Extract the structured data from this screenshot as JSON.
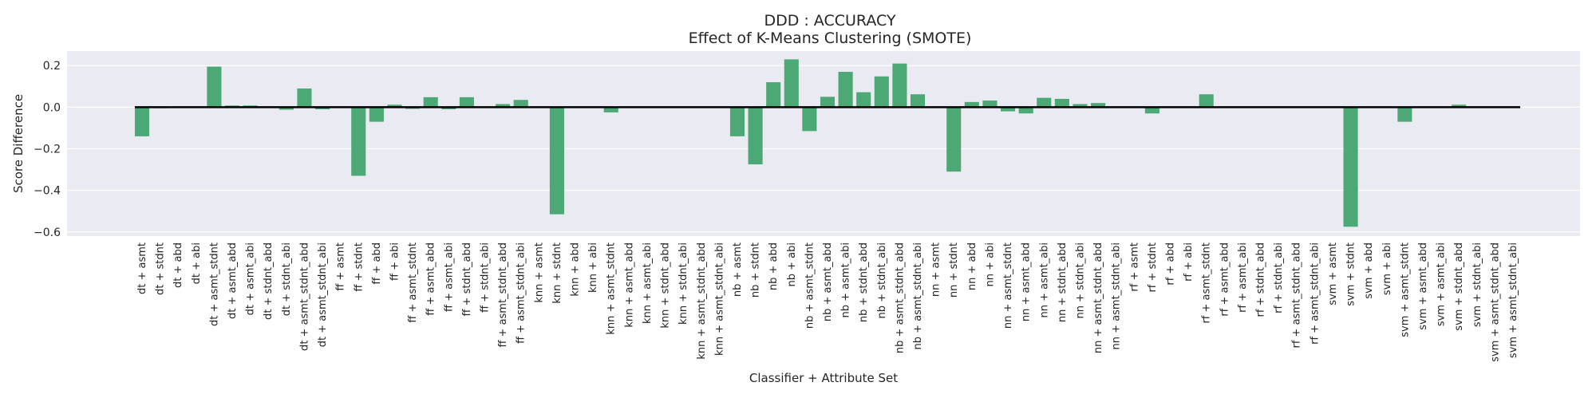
{
  "chart_data": {
    "type": "bar",
    "title": "DDD : ACCURACY",
    "subtitle": "Effect of K-Means Clustering (SMOTE)",
    "xlabel": "Classifier + Attribute Set",
    "ylabel": "Score Difference",
    "ylim": [
      -0.62,
      0.27
    ],
    "yticks": [
      0.2,
      0.0,
      -0.2,
      -0.4,
      -0.6
    ],
    "ytick_labels": [
      "0.2",
      "0.0",
      "−0.2",
      "−0.4",
      "−0.6"
    ],
    "grid": true,
    "reference_line": 0.0,
    "bar_color": "#4ca874",
    "background_color": "#eaeaf2",
    "categories": [
      "dt + asmt",
      "dt + stdnt",
      "dt + abd",
      "dt + abi",
      "dt + asmt_stdnt",
      "dt + asmt_abd",
      "dt + asmt_abi",
      "dt + stdnt_abd",
      "dt + stdnt_abi",
      "dt + asmt_stdnt_abd",
      "dt + asmt_stdnt_abi",
      "ff + asmt",
      "ff + stdnt",
      "ff + abd",
      "ff + abi",
      "ff + asmt_stdnt",
      "ff + asmt_abd",
      "ff + asmt_abi",
      "ff + stdnt_abd",
      "ff + stdnt_abi",
      "ff + asmt_stdnt_abd",
      "ff + asmt_stdnt_abi",
      "knn + asmt",
      "knn + stdnt",
      "knn + abd",
      "knn + abi",
      "knn + asmt_stdnt",
      "knn + asmt_abd",
      "knn + asmt_abi",
      "knn + stdnt_abd",
      "knn + stdnt_abi",
      "knn + asmt_stdnt_abd",
      "knn + asmt_stdnt_abi",
      "nb + asmt",
      "nb + stdnt",
      "nb + abd",
      "nb + abi",
      "nb + asmt_stdnt",
      "nb + asmt_abd",
      "nb + asmt_abi",
      "nb + stdnt_abd",
      "nb + stdnt_abi",
      "nb + asmt_stdnt_abd",
      "nb + asmt_stdnt_abi",
      "nn + asmt",
      "nn + stdnt",
      "nn + abd",
      "nn + abi",
      "nn + asmt_stdnt",
      "nn + asmt_abd",
      "nn + asmt_abi",
      "nn + stdnt_abd",
      "nn + stdnt_abi",
      "nn + asmt_stdnt_abd",
      "nn + asmt_stdnt_abi",
      "rf + asmt",
      "rf + stdnt",
      "rf + abd",
      "rf + abi",
      "rf + asmt_stdnt",
      "rf + asmt_abd",
      "rf + asmt_abi",
      "rf + stdnt_abd",
      "rf + stdnt_abi",
      "rf + asmt_stdnt_abd",
      "rf + asmt_stdnt_abi",
      "svm + asmt",
      "svm + stdnt",
      "svm + abd",
      "svm + abi",
      "svm + asmt_stdnt",
      "svm + asmt_abd",
      "svm + asmt_abi",
      "svm + stdnt_abd",
      "svm + stdnt_abi",
      "svm + asmt_stdnt_abd",
      "svm + asmt_stdnt_abi"
    ],
    "values": [
      -0.14,
      -0.005,
      0.0,
      0.0,
      0.195,
      0.008,
      0.008,
      0.0,
      -0.012,
      0.09,
      -0.01,
      0.0,
      -0.33,
      -0.07,
      0.012,
      -0.008,
      0.048,
      -0.01,
      0.048,
      0.0,
      0.015,
      0.035,
      0.0,
      -0.515,
      0.0,
      0.0,
      -0.025,
      0.0,
      0.0,
      0.0,
      0.0,
      0.0,
      0.0,
      -0.14,
      -0.275,
      0.12,
      0.23,
      -0.115,
      0.05,
      0.17,
      0.072,
      0.148,
      0.21,
      0.062,
      0.0,
      -0.31,
      0.025,
      0.032,
      -0.02,
      -0.03,
      0.045,
      0.04,
      0.015,
      0.02,
      0.0,
      0.0,
      -0.03,
      0.0,
      0.0,
      0.062,
      0.0,
      0.0,
      0.0,
      0.0,
      0.0,
      0.0,
      0.0,
      -0.575,
      0.0,
      0.0,
      -0.07,
      0.0,
      0.0,
      0.012,
      0.0,
      0.0,
      0.0
    ]
  }
}
